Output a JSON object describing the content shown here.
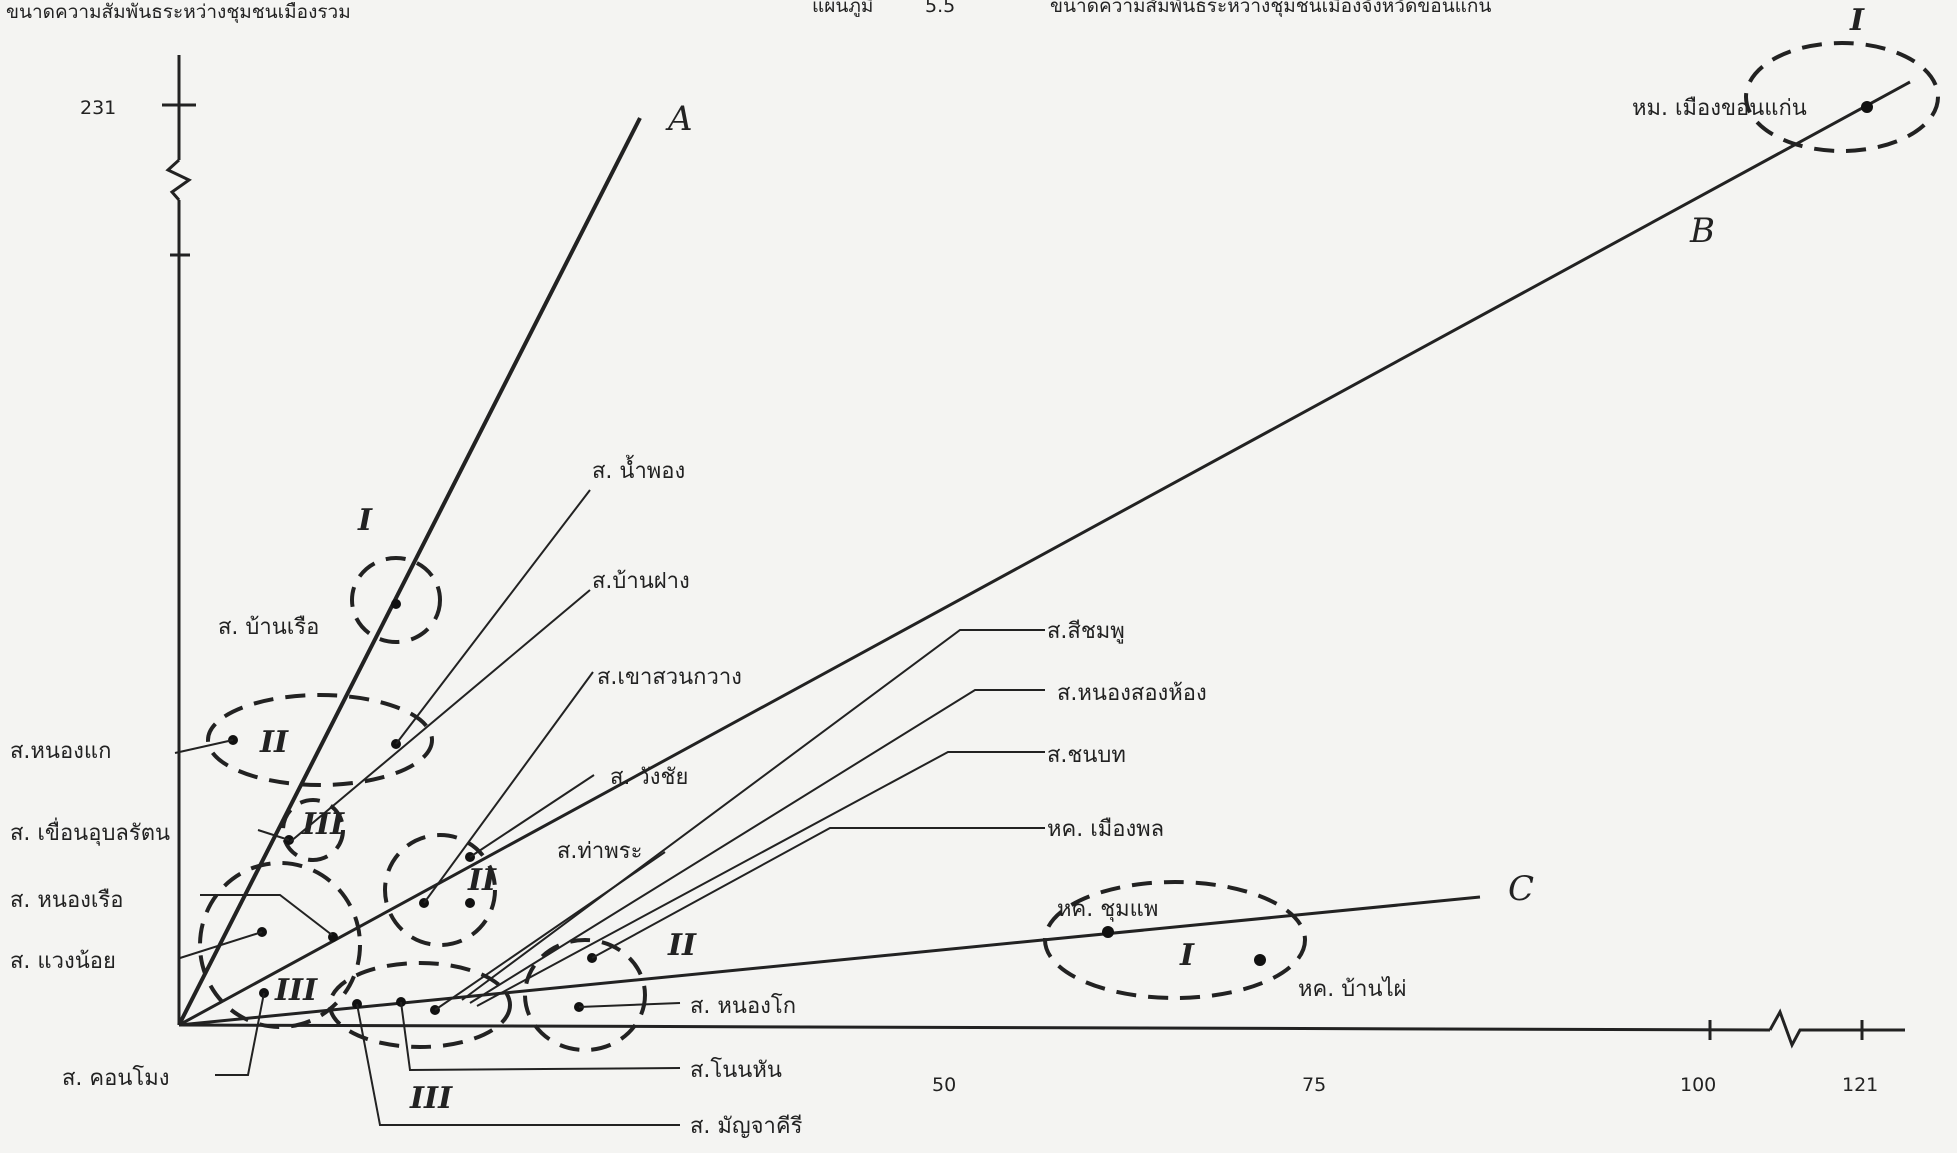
{
  "header": {
    "left_title": "ขนาดความสัมพันธระหว่างชุมชนเมืองรวม",
    "map_label": "แผนภูมิ",
    "map_number": "5.5",
    "right_title": "ขนาดความสัมพันธระหว่างชุมชนเมืองจังหวัดขอนแก่น"
  },
  "axes": {
    "y_top_tick": "231",
    "x_ticks": [
      "50",
      "75",
      "100",
      "121"
    ]
  },
  "lines": {
    "a": "A",
    "b": "B",
    "c": "C"
  },
  "groups": {
    "top_right": "I",
    "upper_left": "I",
    "left_mid": "II",
    "left_small": "III",
    "mid_upper": "II",
    "bottom_left": "III",
    "center": "II",
    "bottom_mid": "III",
    "right_group": "I"
  },
  "places": {
    "khon_kaen": "หม. เมืองขอนแก่น",
    "nam_phong": "ส. น้ำพอง",
    "ban_fang": "ส.บ้านฝาง",
    "khao_suan_kwang": "ส.เขาสวนกวาง",
    "wang_chai": "ส. วังชัย",
    "tha_phra": "ส.ท่าพระ",
    "ban_ruea": "ส. บ้านเรือ",
    "nong_kae": "ส.หนองแก",
    "khuean_ubolratana": "ส. เขื่อนอุบลรัตน",
    "nong_ruea": "ส. หนองเรือ",
    "waeng_noi": "ส. แวงน้อย",
    "khon_mong": "ส. คอนโมง",
    "si_chomphu": "ส.สีชมพู",
    "nong_song_hong": "ส.หนองสองห้อง",
    "chonnabot": "ส.ชนบท",
    "mueang_phon": "หค. เมืองพล",
    "chum_phae": "หค. ชุมแพ",
    "ban_phai": "หค. บ้านไผ่",
    "nong_ko": "ส. หนองโก",
    "non_han": "ส.โนนหัน",
    "mancha_khiri": "ส. มัญจาคีรี"
  }
}
